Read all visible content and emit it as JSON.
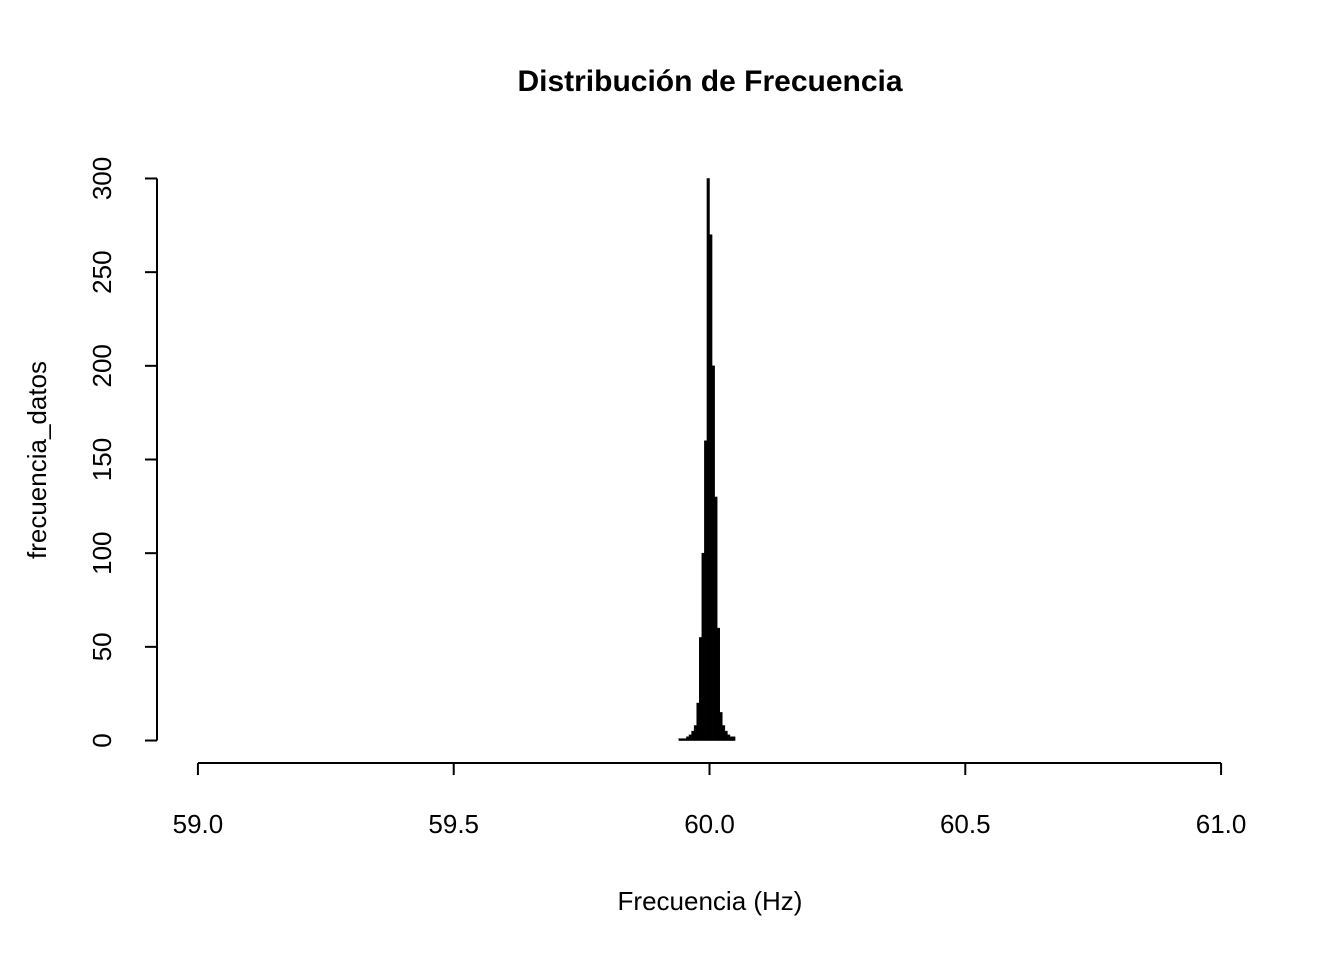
{
  "chart_data": {
    "type": "histogram",
    "title": "Distribución de Frecuencia",
    "x_label": "Frecuencia (Hz)",
    "y_label": "frecuencia_datos",
    "bins": [
      59.94,
      59.945,
      59.95,
      59.955,
      59.96,
      59.965,
      59.97,
      59.975,
      59.98,
      59.985,
      59.99,
      59.995,
      60.0,
      60.005,
      60.01,
      60.015,
      60.02,
      60.025,
      60.03,
      60.035,
      60.04,
      60.045,
      60.05
    ],
    "values": [
      1,
      1,
      1,
      2,
      3,
      5,
      8,
      20,
      55,
      100,
      160,
      300,
      270,
      200,
      130,
      60,
      15,
      8,
      5,
      3,
      2,
      2
    ],
    "color": "#000000",
    "xlim": [
      58.92,
      61.08
    ],
    "xticks": [
      {
        "value": 59,
        "label": "59.0"
      },
      59.5,
      {
        "value": 60,
        "label": "60.0"
      },
      60.5,
      {
        "value": 61,
        "label": "61.0"
      }
    ],
    "ylim": [
      -12,
      312
    ],
    "yticks": [
      0,
      50,
      100,
      150,
      200,
      250,
      300
    ]
  }
}
